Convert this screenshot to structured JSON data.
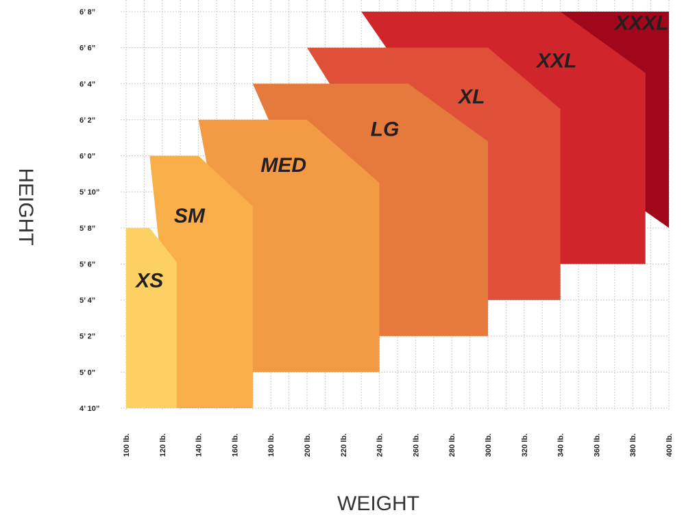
{
  "chart_data": {
    "type": "area",
    "xlabel": "WEIGHT",
    "ylabel": "HEIGHT",
    "x_unit": "lb.",
    "y_unit": "inches",
    "x_ticks": [
      {
        "value": 100,
        "label": "100 lb."
      },
      {
        "value": 120,
        "label": "120 lb."
      },
      {
        "value": 140,
        "label": "140 lb."
      },
      {
        "value": 160,
        "label": "160 lb."
      },
      {
        "value": 180,
        "label": "180 lb."
      },
      {
        "value": 200,
        "label": "200 lb."
      },
      {
        "value": 220,
        "label": "220 lb."
      },
      {
        "value": 240,
        "label": "240 lb."
      },
      {
        "value": 260,
        "label": "260 lb."
      },
      {
        "value": 280,
        "label": "280 lb."
      },
      {
        "value": 300,
        "label": "300 lb."
      },
      {
        "value": 320,
        "label": "320 lb."
      },
      {
        "value": 340,
        "label": "340 lb."
      },
      {
        "value": 360,
        "label": "360 lb."
      },
      {
        "value": 380,
        "label": "380 lb."
      },
      {
        "value": 400,
        "label": "400 lb."
      }
    ],
    "y_ticks": [
      {
        "value": 58,
        "label": "4’ 10”"
      },
      {
        "value": 60,
        "label": "5’ 0”"
      },
      {
        "value": 62,
        "label": "5’ 2”"
      },
      {
        "value": 64,
        "label": "5’ 4”"
      },
      {
        "value": 66,
        "label": "5’ 6”"
      },
      {
        "value": 68,
        "label": "5’ 8”"
      },
      {
        "value": 70,
        "label": "5’ 10”"
      },
      {
        "value": 72,
        "label": "6’ 0”"
      },
      {
        "value": 74,
        "label": "6’ 2”"
      },
      {
        "value": 76,
        "label": "6’ 4”"
      },
      {
        "value": 78,
        "label": "6’ 6”"
      },
      {
        "value": 80,
        "label": "6’ 8”"
      }
    ],
    "xlim": [
      100,
      400
    ],
    "ylim": [
      58,
      80
    ],
    "grid": true,
    "sizes": [
      {
        "name": "XXXL",
        "color": "#a0071b",
        "points": [
          [
            230,
            80
          ],
          [
            400,
            80
          ],
          [
            400,
            68
          ]
        ],
        "label_at": [
          385,
          79.0
        ]
      },
      {
        "name": "XXL",
        "color": "#d0262b",
        "points": [
          [
            230,
            80
          ],
          [
            340,
            80
          ],
          [
            387,
            76.6
          ],
          [
            387,
            66
          ],
          [
            340,
            66
          ],
          [
            340,
            64
          ]
        ],
        "label_at": [
          338,
          76.9
        ]
      },
      {
        "name": "XL",
        "color": "#e05038",
        "points": [
          [
            200,
            78
          ],
          [
            300,
            78
          ],
          [
            340,
            74.6
          ],
          [
            340,
            64
          ],
          [
            300,
            64
          ],
          [
            300,
            62
          ]
        ],
        "label_at": [
          291,
          74.9
        ]
      },
      {
        "name": "LG",
        "color": "#e57a3c",
        "points": [
          [
            170,
            76
          ],
          [
            256,
            76
          ],
          [
            300,
            72.8
          ],
          [
            300,
            62
          ],
          [
            240,
            62
          ],
          [
            240,
            60
          ]
        ],
        "label_at": [
          243,
          73.1
        ]
      },
      {
        "name": "MED",
        "color": "#f39a44",
        "points": [
          [
            140,
            74
          ],
          [
            200,
            74
          ],
          [
            240,
            70.5
          ],
          [
            240,
            60
          ],
          [
            170,
            60
          ],
          [
            170,
            58
          ]
        ],
        "label_at": [
          187,
          71.1
        ]
      },
      {
        "name": "SM",
        "color": "#f8af4a",
        "points": [
          [
            113,
            72
          ],
          [
            140,
            72
          ],
          [
            170,
            69.2
          ],
          [
            170,
            58
          ],
          [
            128,
            58
          ]
        ],
        "label_at": [
          135,
          68.3
        ]
      },
      {
        "name": "XS",
        "color": "#fdd063",
        "points": [
          [
            100,
            68
          ],
          [
            113,
            68
          ],
          [
            128,
            66.1
          ],
          [
            128,
            58
          ],
          [
            100,
            58
          ]
        ],
        "label_at": [
          113,
          64.7
        ]
      }
    ]
  }
}
